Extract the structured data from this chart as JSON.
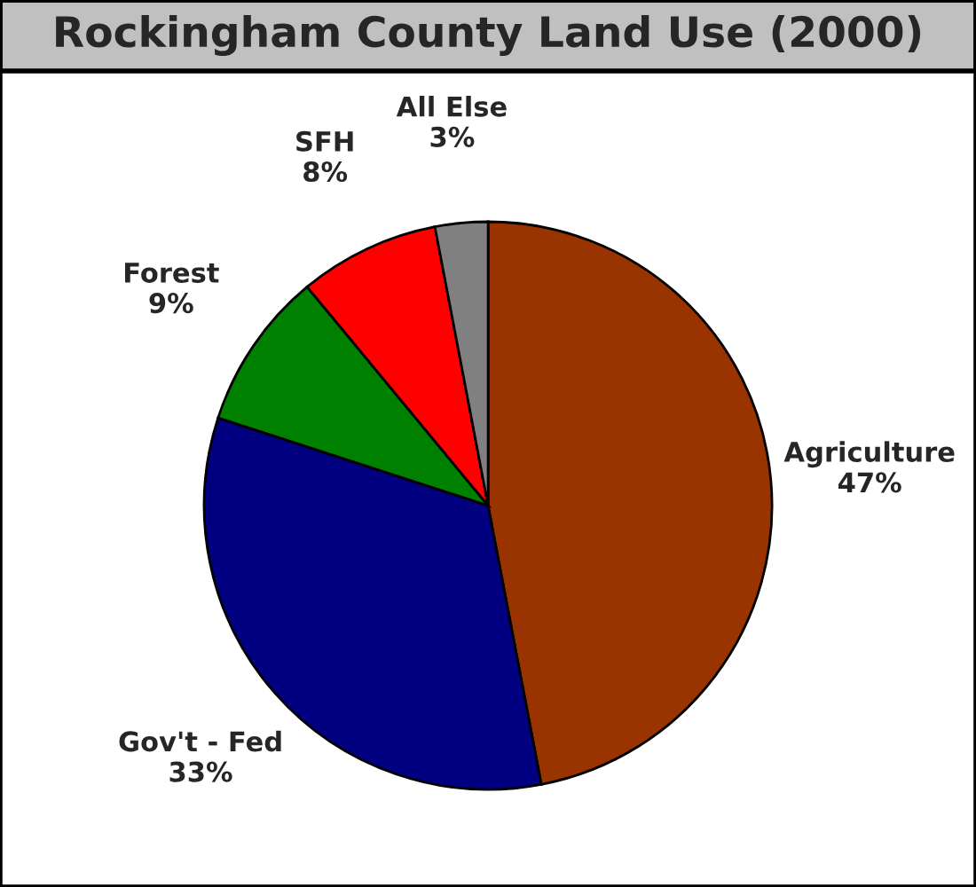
{
  "chart_data": {
    "type": "pie",
    "title": "Rockingham County Land Use (2000)",
    "categories": [
      "Agriculture",
      "Gov't - Fed",
      "Forest",
      "SFH",
      "All Else"
    ],
    "values": [
      47,
      33,
      9,
      8,
      3
    ],
    "value_labels": [
      "47%",
      "33%",
      "9%",
      "8%",
      "3%"
    ],
    "colors": [
      "#993300",
      "#000080",
      "#008000",
      "#ff0000",
      "#808080"
    ],
    "legend": false
  }
}
